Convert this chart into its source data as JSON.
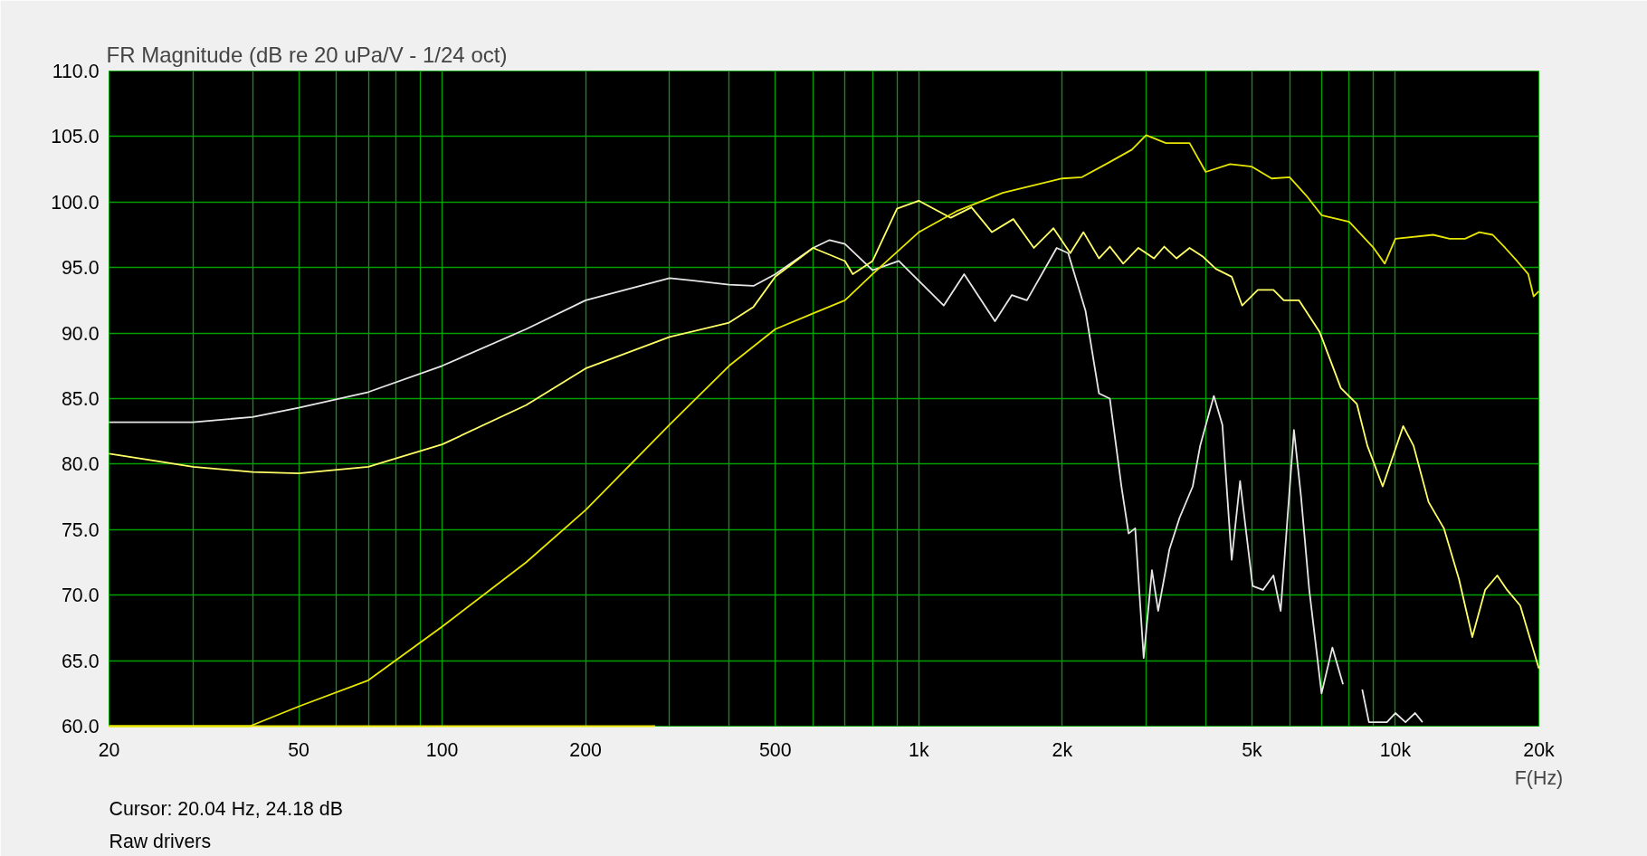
{
  "chart_data": {
    "type": "line",
    "title": "FR Magnitude (dB re 20 uPa/V - 1/24 oct)",
    "xlabel": "F(Hz)",
    "annotations": [
      "Cursor: 20.04 Hz, 24.18 dB",
      "Raw drivers"
    ],
    "log": "x",
    "grid": true,
    "xlim": [
      20,
      20000
    ],
    "ylim": [
      60,
      110
    ],
    "xticks": [
      20,
      {
        "value": 30,
        "label": null
      },
      {
        "value": 40,
        "label": null
      },
      50,
      {
        "value": 60,
        "label": null
      },
      {
        "value": 70,
        "label": null
      },
      {
        "value": 80,
        "label": null
      },
      {
        "value": 90,
        "label": null
      },
      100,
      200,
      {
        "value": 300,
        "label": null
      },
      {
        "value": 400,
        "label": null
      },
      500,
      {
        "value": 600,
        "label": null
      },
      {
        "value": 700,
        "label": null
      },
      {
        "value": 800,
        "label": null
      },
      {
        "value": 900,
        "label": null
      },
      {
        "value": 1000,
        "label": "1k"
      },
      {
        "value": 2000,
        "label": "2k"
      },
      {
        "value": 3000,
        "label": null
      },
      {
        "value": 4000,
        "label": null
      },
      {
        "value": 5000,
        "label": "5k"
      },
      {
        "value": 6000,
        "label": null
      },
      {
        "value": 7000,
        "label": null
      },
      {
        "value": 8000,
        "label": null
      },
      {
        "value": 9000,
        "label": null
      },
      {
        "value": 10000,
        "label": "10k"
      },
      {
        "value": 20000,
        "label": "20k"
      }
    ],
    "yticks": [
      {
        "value": 60,
        "label": "60.0"
      },
      {
        "value": 65,
        "label": "65.0"
      },
      {
        "value": 70,
        "label": "70.0"
      },
      {
        "value": 75,
        "label": "75.0"
      },
      {
        "value": 80,
        "label": "80.0"
      },
      {
        "value": 85,
        "label": "85.0"
      },
      {
        "value": 90,
        "label": "90.0"
      },
      {
        "value": 95,
        "label": "95.0"
      },
      {
        "value": 100,
        "label": "100.0"
      },
      {
        "value": 105,
        "label": "105.0"
      },
      {
        "value": 110,
        "label": "110.0"
      }
    ],
    "series": [
      {
        "color": "#e6e6e6",
        "x": [
          20,
          30,
          40,
          50,
          70,
          100,
          150,
          200,
          300,
          400,
          450,
          500,
          600,
          650,
          700,
          800,
          908,
          1128,
          1245,
          1445,
          1568,
          1686,
          1947,
          2058,
          2238,
          2388,
          2517,
          2662,
          2756,
          2845,
          2964,
          3085,
          3179,
          3357,
          3525,
          3757,
          3894,
          4160,
          4335,
          4535,
          4722,
          5017,
          5276,
          5548,
          5745,
          6126,
          6340,
          6596,
          7000,
          7375,
          7765,
          8090,
          8520,
          8800,
          9600,
          10000,
          10500,
          11000,
          11400
        ],
        "values": [
          83.2,
          83.2,
          83.6,
          84.3,
          85.5,
          87.5,
          90.3,
          92.5,
          94.2,
          93.7,
          93.6,
          94.5,
          96.5,
          97.1,
          96.8,
          94.8,
          95.5,
          92.1,
          94.5,
          90.9,
          92.9,
          92.5,
          96.5,
          96.1,
          91.7,
          85.4,
          85,
          78.3,
          74.7,
          75.1,
          65.2,
          71.9,
          68.8,
          73.5,
          75.9,
          78.3,
          81.4,
          85.2,
          83,
          72.7,
          78.7,
          70.7,
          70.4,
          71.5,
          68.8,
          82.6,
          77.5,
          70.4,
          62.5,
          66,
          63.2,
          null,
          62.8,
          60.3,
          60.3,
          61,
          60.3,
          61,
          60.3
        ]
      },
      {
        "color": "#ffff66",
        "x": [
          20,
          30,
          40,
          50,
          70,
          100,
          150,
          200,
          300,
          400,
          450,
          500,
          600,
          700,
          727,
          800,
          900,
          1000,
          1167,
          1290,
          1424,
          1579,
          1744,
          1917,
          2079,
          2216,
          2388,
          2517,
          2685,
          2889,
          3115,
          3274,
          3474,
          3700,
          3955,
          4200,
          4535,
          4770,
          5146,
          5548,
          5832,
          6279,
          6933,
          7685,
          8300,
          8735,
          9405,
          9883,
          10386,
          10917,
          11740,
          12640,
          13600,
          14500,
          15430,
          16360,
          17150,
          18280,
          20000
        ],
        "values": [
          80.8,
          79.8,
          79.4,
          79.3,
          79.8,
          81.5,
          84.5,
          87.3,
          89.7,
          90.8,
          92,
          94.3,
          96.5,
          95.5,
          94.5,
          95.5,
          99.5,
          100.1,
          98.8,
          99.6,
          97.7,
          98.7,
          96.5,
          98,
          96.1,
          97.7,
          95.7,
          96.6,
          95.3,
          96.5,
          95.7,
          96.6,
          95.7,
          96.5,
          95.8,
          94.9,
          94.3,
          92.1,
          93.3,
          93.3,
          92.5,
          92.5,
          90.1,
          85.8,
          84.6,
          81.4,
          78.3,
          80.6,
          82.9,
          81.4,
          77.1,
          75.1,
          71.2,
          66.8,
          70.4,
          71.5,
          70.4,
          69.2,
          64.4
        ]
      },
      {
        "color": "#e6e600",
        "x": [
          20,
          39.5,
          50,
          70,
          100,
          150,
          200,
          300,
          400,
          500,
          600,
          700,
          800,
          1000,
          1200,
          1500,
          2000,
          2200,
          2500,
          2800,
          3000,
          3300,
          3700,
          4000,
          4500,
          5000,
          5500,
          6000,
          6500,
          7000,
          8000,
          9000,
          9500,
          10000,
          12000,
          13000,
          14000,
          15000,
          16000,
          17000,
          18000,
          19000,
          19500,
          20000
        ],
        "values": [
          60,
          60,
          61.5,
          63.5,
          67.6,
          72.5,
          76.5,
          83,
          87.5,
          90.3,
          91.5,
          92.5,
          94.5,
          97.7,
          99.3,
          100.7,
          101.8,
          101.9,
          103,
          104,
          105.1,
          104.5,
          104.5,
          102.3,
          102.9,
          102.7,
          101.8,
          101.9,
          100.5,
          99,
          98.5,
          96.5,
          95.3,
          97.2,
          97.5,
          97.2,
          97.2,
          97.7,
          97.5,
          96.5,
          95.5,
          94.5,
          92.8,
          93.2
        ]
      },
      {
        "color": "#e6e600",
        "x": [
          20,
          280
        ],
        "values": [
          60,
          60
        ]
      }
    ]
  }
}
